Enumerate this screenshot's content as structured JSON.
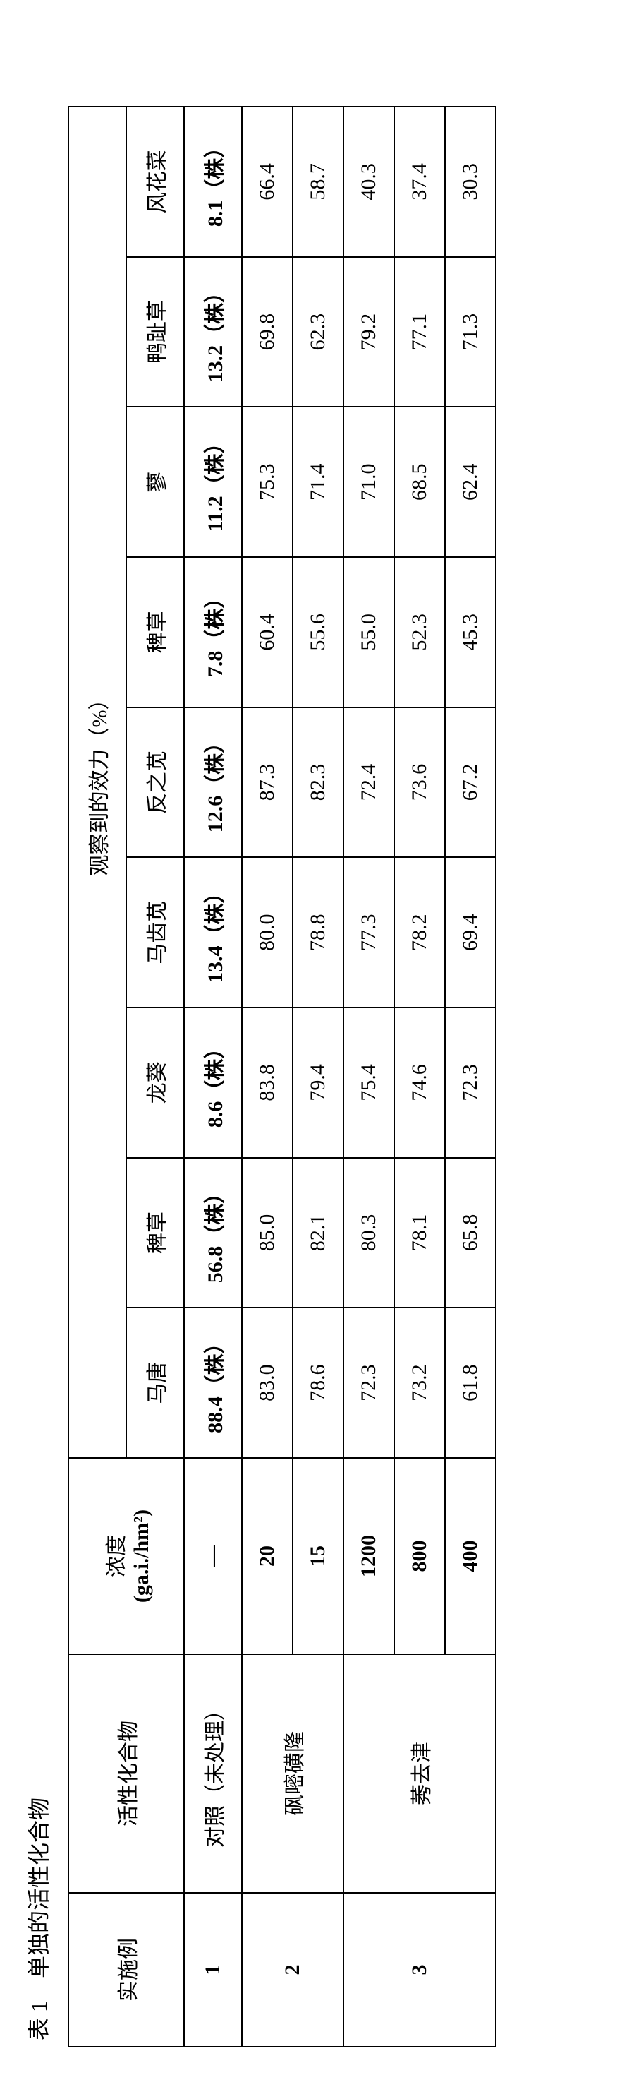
{
  "caption": "表 1　单独的活性化合物",
  "headers": {
    "col_example": "实施例",
    "col_compound": "活性化合物",
    "col_conc_line1": "浓度",
    "col_conc_line2": "(ga.i./hm²)",
    "col_efficacy": "观察到的效力（%）",
    "weeds": [
      "马唐",
      "稗草",
      "龙葵",
      "马齿苋",
      "反之苋",
      "稗草",
      "蓼",
      "鸭趾草",
      "风花菜"
    ]
  },
  "plant_counts_label_suffix": "（株）",
  "rows": [
    {
      "example": "1",
      "compound": "对照（未处理）",
      "conc": "—",
      "counts": [
        "88.4（株）",
        "56.8（株）",
        "8.6（株）",
        "13.4（株）",
        "12.6（株）",
        "7.8（株）",
        "11.2（株）",
        "13.2（株）",
        "8.1（株）"
      ],
      "counts_bold": true
    },
    {
      "example": "2",
      "compound": "砜嘧磺隆",
      "conc": "20",
      "counts": [
        "83.0",
        "85.0",
        "83.8",
        "80.0",
        "87.3",
        "60.4",
        "75.3",
        "69.8",
        "66.4"
      ]
    },
    {
      "conc": "15",
      "counts": [
        "78.6",
        "82.1",
        "79.4",
        "78.8",
        "82.3",
        "55.6",
        "71.4",
        "62.3",
        "58.7"
      ]
    },
    {
      "example": "3",
      "compound": "莠去津",
      "conc": "1200",
      "counts": [
        "72.3",
        "80.3",
        "75.4",
        "77.3",
        "72.4",
        "55.0",
        "71.0",
        "79.2",
        "40.3"
      ]
    },
    {
      "conc": "800",
      "counts": [
        "73.2",
        "78.1",
        "74.6",
        "78.2",
        "73.6",
        "52.3",
        "68.5",
        "77.1",
        "37.4"
      ]
    },
    {
      "conc": "400",
      "counts": [
        "61.8",
        "65.8",
        "72.3",
        "69.4",
        "67.2",
        "45.3",
        "62.4",
        "71.3",
        "30.3"
      ]
    }
  ]
}
